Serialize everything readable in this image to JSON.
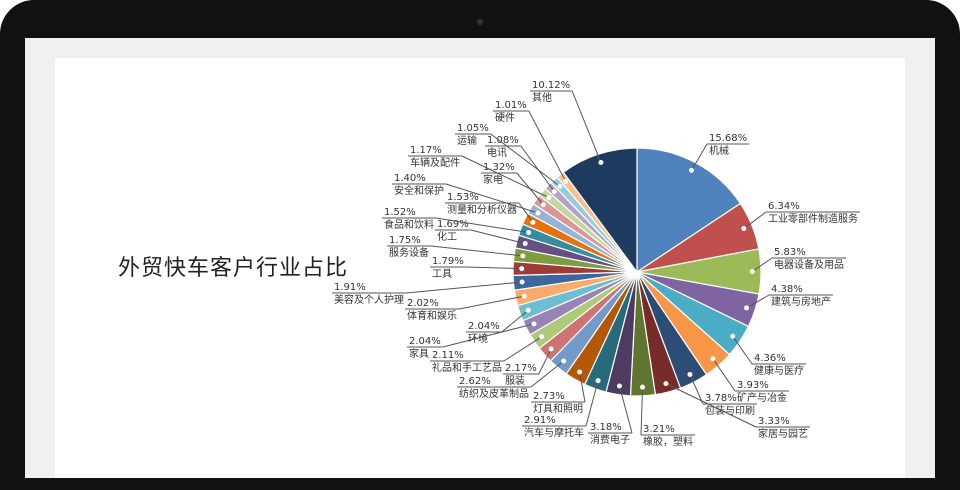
{
  "chart_data": {
    "type": "pie",
    "title": "外贸快车客户行业占比",
    "start": "top",
    "direction": "clockwise",
    "slices": [
      {
        "label": "机械",
        "value": 15.68,
        "pct": "15.68%",
        "color": "#4f81bd"
      },
      {
        "label": "工业零部件制造服务",
        "value": 6.34,
        "pct": "6.34%",
        "color": "#c0504d"
      },
      {
        "label": "电器设备及用品",
        "value": 5.83,
        "pct": "5.83%",
        "color": "#9bbb59"
      },
      {
        "label": "建筑与房地产",
        "value": 4.38,
        "pct": "4.38%",
        "color": "#8064a2"
      },
      {
        "label": "健康与医疗",
        "value": 4.36,
        "pct": "4.36%",
        "color": "#4bacc6"
      },
      {
        "label": "矿产与冶金",
        "value": 3.93,
        "pct": "3.93%",
        "color": "#f79646"
      },
      {
        "label": "包装与印刷",
        "value": 3.78,
        "pct": "3.78%",
        "color": "#2c4d75"
      },
      {
        "label": "家居与园艺",
        "value": 3.33,
        "pct": "3.33%",
        "color": "#772c2a"
      },
      {
        "label": "橡胶，塑料",
        "value": 3.21,
        "pct": "3.21%",
        "color": "#5f7530"
      },
      {
        "label": "消费电子",
        "value": 3.18,
        "pct": "3.18%",
        "color": "#4d3b62"
      },
      {
        "label": "汽车与摩托车",
        "value": 2.91,
        "pct": "2.91%",
        "color": "#276a7c"
      },
      {
        "label": "灯具和照明",
        "value": 2.73,
        "pct": "2.73%",
        "color": "#b65708"
      },
      {
        "label": "纺织及皮革制品",
        "value": 2.62,
        "pct": "2.62%",
        "color": "#729aca"
      },
      {
        "label": "服装",
        "value": 2.17,
        "pct": "2.17%",
        "color": "#cd7371"
      },
      {
        "label": "礼品和手工艺品",
        "value": 2.11,
        "pct": "2.11%",
        "color": "#afc97a"
      },
      {
        "label": "家具",
        "value": 2.04,
        "pct": "2.04%",
        "color": "#9983b5"
      },
      {
        "label": "环境",
        "value": 2.04,
        "pct": "2.04%",
        "color": "#6fbdd1"
      },
      {
        "label": "体育和娱乐",
        "value": 2.02,
        "pct": "2.02%",
        "color": "#f9ab6b"
      },
      {
        "label": "美容及个人护理",
        "value": 1.91,
        "pct": "1.91%",
        "color": "#3a679c"
      },
      {
        "label": "工具",
        "value": 1.79,
        "pct": "1.79%",
        "color": "#9e3b38"
      },
      {
        "label": "服务设备",
        "value": 1.75,
        "pct": "1.75%",
        "color": "#7e9c40"
      },
      {
        "label": "化工",
        "value": 1.69,
        "pct": "1.69%",
        "color": "#664f82"
      },
      {
        "label": "食品和饮料",
        "value": 1.52,
        "pct": "1.52%",
        "color": "#358ca3"
      },
      {
        "label": "测量和分析仪器",
        "value": 1.53,
        "pct": "1.53%",
        "color": "#e4730f"
      },
      {
        "label": "安全和保护",
        "value": 1.4,
        "pct": "1.40%",
        "color": "#95b3d7"
      },
      {
        "label": "家电",
        "value": 1.32,
        "pct": "1.32%",
        "color": "#d99694"
      },
      {
        "label": "车辆及配件",
        "value": 1.17,
        "pct": "1.17%",
        "color": "#c3d69b"
      },
      {
        "label": "电讯",
        "value": 1.08,
        "pct": "1.08%",
        "color": "#b3a2c7"
      },
      {
        "label": "运输",
        "value": 1.05,
        "pct": "1.05%",
        "color": "#93cddd"
      },
      {
        "label": "硬件",
        "value": 1.01,
        "pct": "1.01%",
        "color": "#fac08f"
      },
      {
        "label": "其他",
        "value": 10.12,
        "pct": "10.12%",
        "color": "#1f3a5f"
      }
    ]
  }
}
